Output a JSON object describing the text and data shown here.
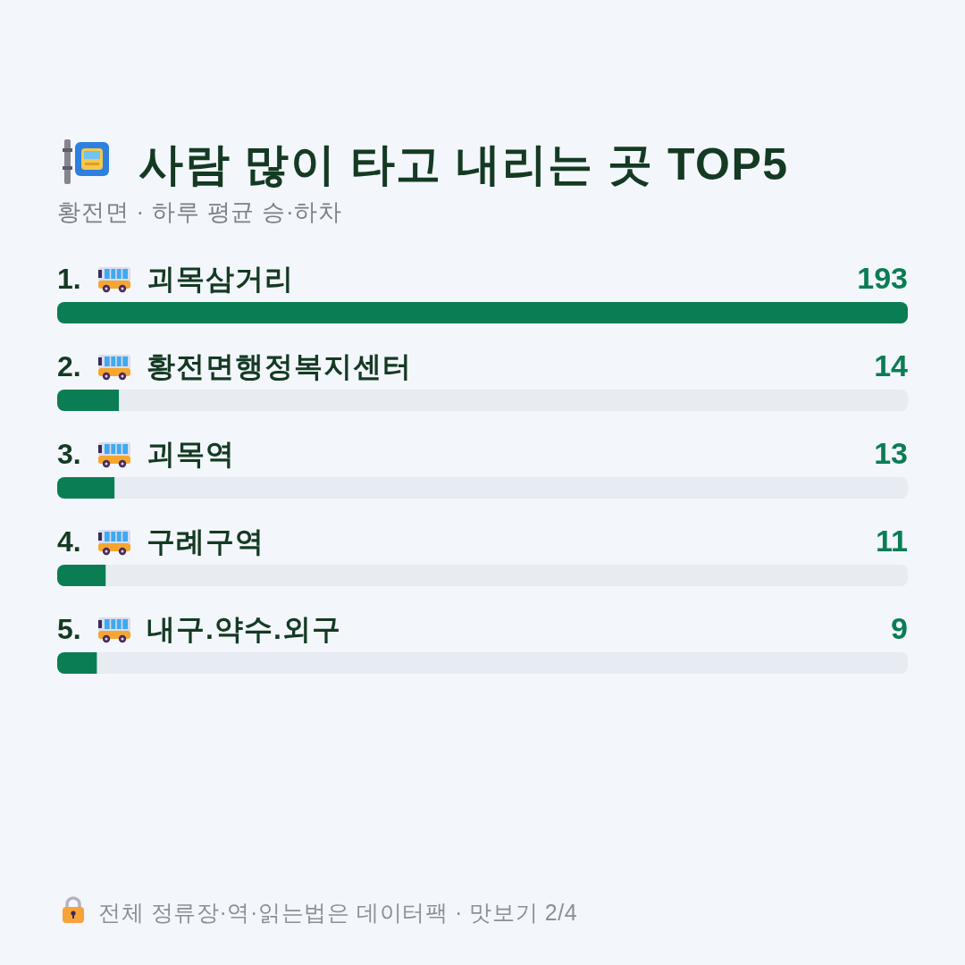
{
  "chart_data": {
    "type": "bar",
    "orientation": "horizontal",
    "title": "사람 많이 타고 내리는 곳 TOP5",
    "subtitle": "황전면 · 하루 평균 승·하차",
    "categories": [
      "1. 괴목삼거리",
      "2. 황전면행정복지센터",
      "3. 괴목역",
      "4. 구례구역",
      "5. 내구.약수.외구"
    ],
    "values": [
      193,
      14,
      13,
      11,
      9
    ],
    "color": "#0b7d55",
    "data_labels": true,
    "annotations": [
      "전체 정류장·역·읽는법은 데이터팩 · 맛보기 2/4"
    ]
  }
}
